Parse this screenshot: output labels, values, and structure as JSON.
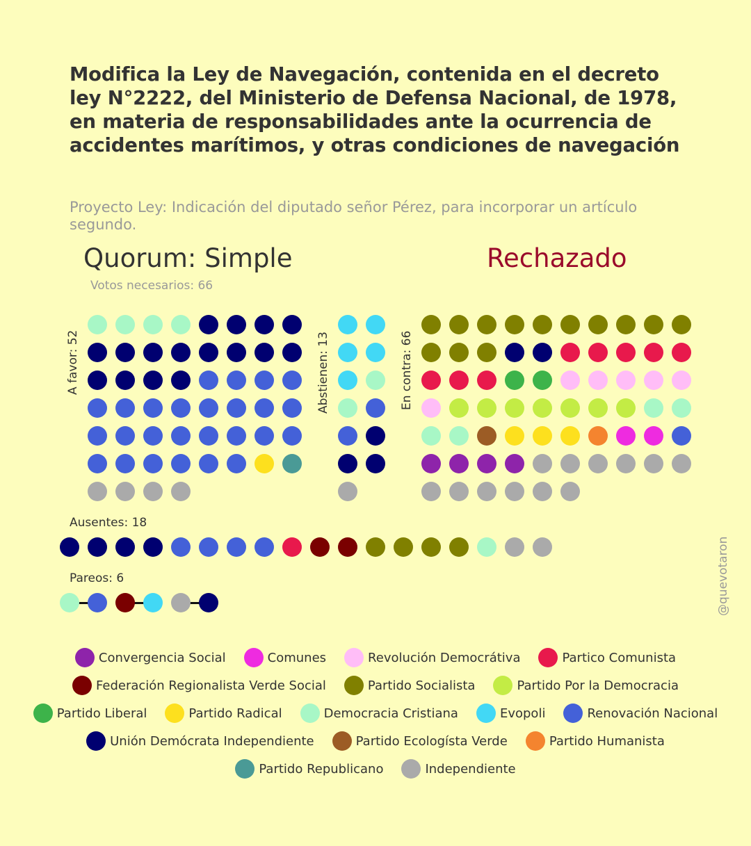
{
  "title": "Modifica la Ley de Navegación, contenida en el decreto ley N°2222, del Ministerio de Defensa Nacional, de 1978, en materia de responsabilidades ante la ocurrencia de accidentes marítimos, y otras condiciones de navegación",
  "subtitle": "Proyecto Ley: Indicación del diputado señor Pérez, para incorporar un artículo segundo.",
  "quorum": "Quorum: Simple",
  "result": "Rechazado",
  "votes_needed": "Votos necesarios: 66",
  "colors": {
    "CS": "#8e24aa",
    "COM": "#ee2be0",
    "RD": "#ffbdf7",
    "PC": "#e8194c",
    "FRVS": "#7a0000",
    "PS": "#808000",
    "PPD": "#c3ec45",
    "PL": "#3db34a",
    "PR": "#fde01e",
    "DC": "#a8f7c6",
    "EVO": "#42d8f5",
    "RN": "#4461d8",
    "UDI": "#000070",
    "PEV": "#9c5c25",
    "PH": "#f4842f",
    "REP": "#4a9a96",
    "IND": "#aaaaaa"
  },
  "a_favor": {
    "label": "A favor: 52",
    "dots": [
      "DC",
      "DC",
      "DC",
      "DC",
      "UDI",
      "UDI",
      "UDI",
      "UDI",
      "UDI",
      "UDI",
      "UDI",
      "UDI",
      "UDI",
      "UDI",
      "UDI",
      "UDI",
      "UDI",
      "UDI",
      "UDI",
      "UDI",
      "RN",
      "RN",
      "RN",
      "RN",
      "RN",
      "RN",
      "RN",
      "RN",
      "RN",
      "RN",
      "RN",
      "RN",
      "RN",
      "RN",
      "RN",
      "RN",
      "RN",
      "RN",
      "RN",
      "RN",
      "RN",
      "RN",
      "RN",
      "RN",
      "RN",
      "RN",
      "PR",
      "REP",
      "IND",
      "IND",
      "IND",
      "IND"
    ]
  },
  "abstienen": {
    "label": "Abstienen: 13",
    "dots": [
      "EVO",
      "EVO",
      "EVO",
      "EVO",
      "EVO",
      "DC",
      "DC",
      "RN",
      "RN",
      "UDI",
      "UDI",
      "UDI",
      "IND"
    ]
  },
  "en_contra": {
    "label": "En contra: 66",
    "dots": [
      "PS",
      "PS",
      "PS",
      "PS",
      "PS",
      "PS",
      "PS",
      "PS",
      "PS",
      "PS",
      "PS",
      "PS",
      "PS",
      "UDI",
      "UDI",
      "PC",
      "PC",
      "PC",
      "PC",
      "PC",
      "PC",
      "PC",
      "PC",
      "PL",
      "PL",
      "RD",
      "RD",
      "RD",
      "RD",
      "RD",
      "RD",
      "PPD",
      "PPD",
      "PPD",
      "PPD",
      "PPD",
      "PPD",
      "PPD",
      "DC",
      "DC",
      "DC",
      "DC",
      "PEV",
      "PR",
      "PR",
      "PR",
      "PH",
      "COM",
      "COM",
      "RN",
      "CS",
      "CS",
      "CS",
      "CS",
      "IND",
      "IND",
      "IND",
      "IND",
      "IND",
      "IND",
      "IND",
      "IND",
      "IND",
      "IND",
      "IND",
      "IND"
    ]
  },
  "ausentes": {
    "label": "Ausentes: 18",
    "dots": [
      "UDI",
      "UDI",
      "UDI",
      "UDI",
      "RN",
      "RN",
      "RN",
      "RN",
      "PC",
      "FRVS",
      "FRVS",
      "PS",
      "PS",
      "PS",
      "PS",
      "DC",
      "IND",
      "IND"
    ]
  },
  "pareos": {
    "label": "Pareos: 6",
    "pairs": [
      [
        "DC",
        "RN"
      ],
      [
        "FRVS",
        "EVO"
      ],
      [
        "IND",
        "UDI"
      ]
    ]
  },
  "watermark": "@quevotaron",
  "legend": [
    [
      [
        "CS",
        "Convergencia Social"
      ],
      [
        "COM",
        "Comunes"
      ],
      [
        "RD",
        "Revolución Democrátiva"
      ],
      [
        "PC",
        "Partico Comunista"
      ]
    ],
    [
      [
        "FRVS",
        "Federación Regionalista Verde Social"
      ],
      [
        "PS",
        "Partido Socialista"
      ],
      [
        "PPD",
        "Partido Por la Democracia"
      ]
    ],
    [
      [
        "PL",
        "Partido Liberal"
      ],
      [
        "PR",
        "Partido Radical"
      ],
      [
        "DC",
        "Democracia Cristiana"
      ],
      [
        "EVO",
        "Evopoli"
      ],
      [
        "RN",
        "Renovación Nacional"
      ]
    ],
    [
      [
        "UDI",
        "Unión Demócrata Independiente"
      ],
      [
        "PEV",
        "Partido Ecologísta Verde"
      ],
      [
        "PH",
        "Partido Humanista"
      ]
    ],
    [
      [
        "REP",
        "Partido Republicano"
      ],
      [
        "IND",
        "Independiente"
      ]
    ]
  ]
}
